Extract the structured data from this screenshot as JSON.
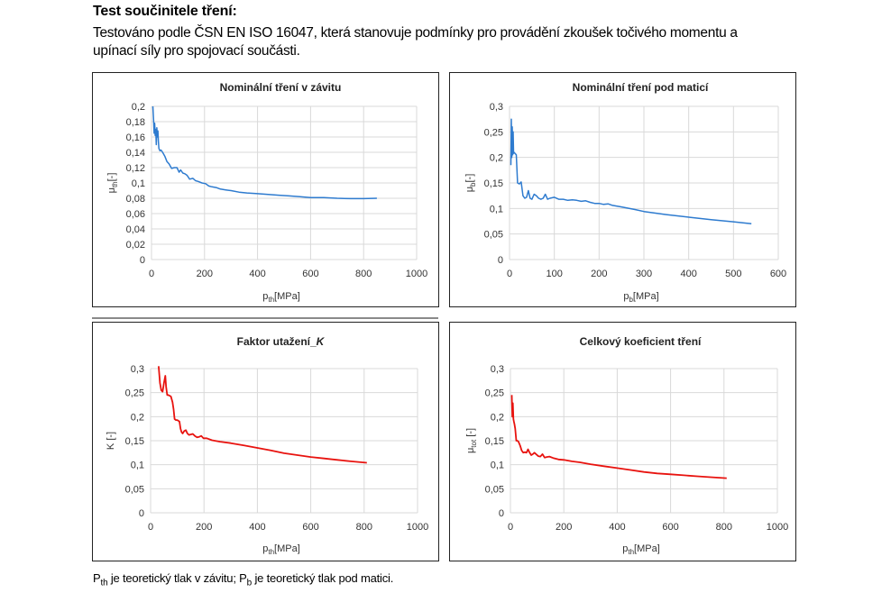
{
  "heading": "Test součinitele tření:",
  "intro": "Testováno podle  ČSN EN ISO 16047, která stanovuje podmínky pro provádění zkoušek točivého momentu a upínací síly pro spojovací součásti.",
  "footnote": {
    "part1_main": "P",
    "part1_sub": "th",
    "part1_text": " je teoretický tlak v závitu;  ",
    "part2_main": "P",
    "part2_sub": "b",
    "part2_text": " je teoretický tlak pod matici."
  },
  "chart_data": [
    {
      "id": "thread",
      "type": "line",
      "title": "Nominální tření v závitu",
      "xlabel_main": "p",
      "xlabel_sub": "th",
      "xlabel_unit": "[MPa]",
      "ylabel_main": "μ",
      "ylabel_sub": "th",
      "ylabel_unit": "[-]",
      "xlim": [
        0,
        1000
      ],
      "ylim": [
        0,
        0.2
      ],
      "xticks": [
        0,
        200,
        400,
        600,
        800,
        1000
      ],
      "xtick_labels": [
        "0",
        "200",
        "400",
        "600",
        "800",
        "1000"
      ],
      "yticks": [
        0,
        0.02,
        0.04,
        0.06,
        0.08,
        0.1,
        0.12,
        0.14,
        0.16,
        0.18,
        0.2
      ],
      "ytick_labels": [
        "0",
        "0,02",
        "0,04",
        "0,06",
        "0,08",
        "0,1",
        "0,12",
        "0,14",
        "0,16",
        "0,18",
        "0,2"
      ],
      "grid": true,
      "color": "#2e7bcf",
      "series": [
        {
          "name": "μth",
          "x": [
            5,
            8,
            10,
            12,
            14,
            16,
            18,
            20,
            22,
            24,
            26,
            28,
            32,
            36,
            42,
            50,
            58,
            66,
            76,
            86,
            96,
            104,
            110,
            118,
            126,
            134,
            144,
            156,
            166,
            176,
            190,
            204,
            216,
            228,
            244,
            260,
            280,
            300,
            330,
            360,
            400,
            440,
            480,
            520,
            560,
            600,
            650,
            700,
            750,
            800,
            850
          ],
          "y": [
            0.2,
            0.18,
            0.165,
            0.178,
            0.162,
            0.17,
            0.15,
            0.172,
            0.16,
            0.168,
            0.155,
            0.145,
            0.142,
            0.143,
            0.14,
            0.135,
            0.128,
            0.125,
            0.119,
            0.12,
            0.12,
            0.114,
            0.117,
            0.113,
            0.112,
            0.11,
            0.105,
            0.106,
            0.103,
            0.102,
            0.1,
            0.099,
            0.096,
            0.095,
            0.094,
            0.092,
            0.091,
            0.09,
            0.088,
            0.087,
            0.086,
            0.085,
            0.084,
            0.083,
            0.082,
            0.081,
            0.081,
            0.08,
            0.0795,
            0.0795,
            0.08
          ]
        }
      ]
    },
    {
      "id": "nut",
      "type": "line",
      "title": "Nominální tření pod maticí",
      "xlabel_main": "p",
      "xlabel_sub": "b",
      "xlabel_unit": "[MPa]",
      "ylabel_main": "μ",
      "ylabel_sub": "b",
      "ylabel_unit": "[-]",
      "xlim": [
        0,
        600
      ],
      "ylim": [
        0,
        0.3
      ],
      "xticks": [
        0,
        100,
        200,
        300,
        400,
        500,
        600
      ],
      "xtick_labels": [
        "0",
        "100",
        "200",
        "300",
        "400",
        "500",
        "600"
      ],
      "yticks": [
        0,
        0.05,
        0.1,
        0.15,
        0.2,
        0.25,
        0.3
      ],
      "ytick_labels": [
        "0",
        "0,05",
        "0,1",
        "0,15",
        "0,2",
        "0,25",
        "0,3"
      ],
      "grid": true,
      "color": "#2e7bcf",
      "series": [
        {
          "name": "μb",
          "x": [
            3,
            4,
            5,
            6,
            7,
            8,
            9,
            10,
            12,
            15,
            18,
            22,
            26,
            30,
            34,
            38,
            42,
            46,
            50,
            55,
            60,
            65,
            70,
            75,
            80,
            85,
            90,
            100,
            110,
            120,
            130,
            140,
            150,
            160,
            170,
            180,
            190,
            200,
            210,
            220,
            230,
            250,
            280,
            300,
            350,
            400,
            450,
            500,
            540
          ],
          "y": [
            0.185,
            0.275,
            0.2,
            0.26,
            0.205,
            0.25,
            0.208,
            0.21,
            0.208,
            0.205,
            0.15,
            0.148,
            0.152,
            0.125,
            0.12,
            0.122,
            0.135,
            0.12,
            0.118,
            0.128,
            0.125,
            0.12,
            0.118,
            0.12,
            0.128,
            0.118,
            0.12,
            0.122,
            0.118,
            0.118,
            0.116,
            0.117,
            0.116,
            0.114,
            0.115,
            0.112,
            0.11,
            0.11,
            0.108,
            0.109,
            0.106,
            0.103,
            0.098,
            0.094,
            0.088,
            0.083,
            0.078,
            0.074,
            0.07
          ]
        }
      ]
    },
    {
      "id": "k-factor",
      "type": "line",
      "title": "Faktor utažení_",
      "title_italic": "K",
      "xlabel_main": "p",
      "xlabel_sub": "th",
      "xlabel_unit": "[MPa]",
      "ylabel_main": "K [-]",
      "ylabel_sub": "",
      "ylabel_unit": "",
      "xlim": [
        0,
        1000
      ],
      "ylim": [
        0,
        0.3
      ],
      "xticks": [
        0,
        200,
        400,
        600,
        800,
        1000
      ],
      "xtick_labels": [
        "0",
        "200",
        "400",
        "600",
        "800",
        "1000"
      ],
      "yticks": [
        0,
        0.05,
        0.1,
        0.15,
        0.2,
        0.25,
        0.3
      ],
      "ytick_labels": [
        "0",
        "0,05",
        "0,1",
        "0,15",
        "0,2",
        "0,25",
        "0,3"
      ],
      "grid": true,
      "color": "#e8130f",
      "series": [
        {
          "name": "K",
          "x": [
            30,
            35,
            40,
            45,
            50,
            55,
            58,
            62,
            66,
            70,
            76,
            82,
            86,
            90,
            95,
            100,
            108,
            112,
            116,
            120,
            126,
            132,
            138,
            144,
            150,
            158,
            166,
            174,
            182,
            190,
            198,
            210,
            230,
            260,
            300,
            350,
            400,
            450,
            500,
            550,
            600,
            650,
            700,
            750,
            810
          ],
          "y": [
            0.305,
            0.27,
            0.255,
            0.252,
            0.27,
            0.285,
            0.262,
            0.245,
            0.245,
            0.244,
            0.242,
            0.23,
            0.215,
            0.195,
            0.193,
            0.193,
            0.19,
            0.175,
            0.168,
            0.165,
            0.17,
            0.172,
            0.165,
            0.162,
            0.163,
            0.164,
            0.16,
            0.157,
            0.158,
            0.16,
            0.155,
            0.155,
            0.151,
            0.148,
            0.145,
            0.14,
            0.135,
            0.13,
            0.124,
            0.12,
            0.116,
            0.113,
            0.11,
            0.107,
            0.104
          ]
        }
      ]
    },
    {
      "id": "total",
      "type": "line",
      "title": "Celkový koeficient tření",
      "xlabel_main": "p",
      "xlabel_sub": "th",
      "xlabel_unit": "[MPa]",
      "ylabel_main": "μ",
      "ylabel_sub": "tot",
      "ylabel_unit": " [-]",
      "xlim": [
        0,
        1000
      ],
      "ylim": [
        0,
        0.3
      ],
      "xticks": [
        0,
        200,
        400,
        600,
        800,
        1000
      ],
      "xtick_labels": [
        "0",
        "200",
        "400",
        "600",
        "800",
        "1000"
      ],
      "yticks": [
        0,
        0.05,
        0.1,
        0.15,
        0.2,
        0.25,
        0.3
      ],
      "ytick_labels": [
        "0",
        "0,05",
        "0,1",
        "0,15",
        "0,2",
        "0,25",
        "0,3"
      ],
      "grid": true,
      "color": "#e8130f",
      "series": [
        {
          "name": "μtot",
          "x": [
            5,
            7,
            9,
            11,
            13,
            15,
            18,
            22,
            26,
            30,
            36,
            42,
            48,
            54,
            60,
            66,
            72,
            78,
            84,
            90,
            96,
            104,
            112,
            120,
            128,
            136,
            146,
            160,
            180,
            200,
            230,
            260,
            300,
            350,
            400,
            450,
            500,
            550,
            600,
            650,
            700,
            750,
            810
          ],
          "y": [
            0.245,
            0.2,
            0.228,
            0.195,
            0.19,
            0.185,
            0.175,
            0.15,
            0.15,
            0.148,
            0.14,
            0.13,
            0.125,
            0.126,
            0.125,
            0.132,
            0.125,
            0.12,
            0.122,
            0.125,
            0.122,
            0.118,
            0.117,
            0.122,
            0.115,
            0.116,
            0.117,
            0.114,
            0.111,
            0.11,
            0.107,
            0.105,
            0.101,
            0.097,
            0.093,
            0.089,
            0.085,
            0.082,
            0.08,
            0.078,
            0.076,
            0.074,
            0.072
          ]
        }
      ]
    }
  ]
}
